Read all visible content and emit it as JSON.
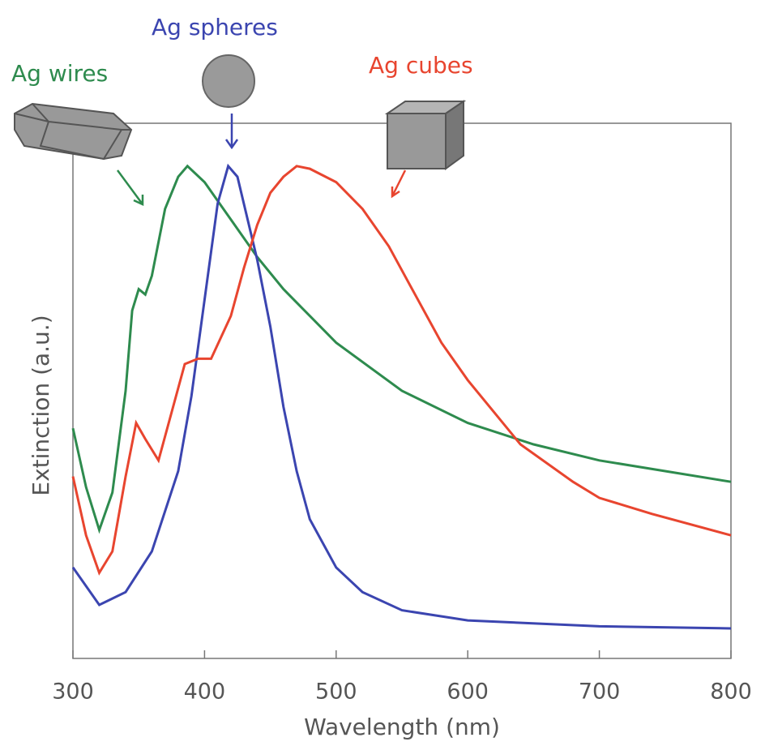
{
  "chart_data": {
    "type": "line",
    "xlabel": "Wavelength (nm)",
    "ylabel": "Extinction (a.u.)",
    "xlim": [
      300,
      800
    ],
    "ylim": [
      0,
      1
    ],
    "xticks": [
      300,
      400,
      500,
      600,
      700,
      800
    ],
    "series": [
      {
        "name": "Ag wires",
        "color": "#2e8b4e",
        "x": [
          300,
          310,
          320,
          330,
          340,
          345,
          350,
          355,
          360,
          370,
          380,
          387,
          400,
          420,
          440,
          460,
          480,
          500,
          550,
          600,
          650,
          700,
          750,
          800
        ],
        "values": [
          0.43,
          0.32,
          0.24,
          0.31,
          0.5,
          0.65,
          0.69,
          0.68,
          0.715,
          0.84,
          0.9,
          0.92,
          0.89,
          0.82,
          0.75,
          0.69,
          0.64,
          0.59,
          0.5,
          0.44,
          0.4,
          0.37,
          0.35,
          0.33
        ]
      },
      {
        "name": "Ag spheres",
        "color": "#3b45b0",
        "x": [
          300,
          320,
          340,
          360,
          380,
          390,
          400,
          410,
          418,
          425,
          440,
          450,
          460,
          470,
          480,
          500,
          520,
          550,
          600,
          700,
          800
        ],
        "values": [
          0.17,
          0.1,
          0.124,
          0.2,
          0.35,
          0.49,
          0.67,
          0.85,
          0.92,
          0.9,
          0.745,
          0.62,
          0.47,
          0.35,
          0.26,
          0.17,
          0.124,
          0.09,
          0.071,
          0.06,
          0.056
        ]
      },
      {
        "name": "Ag cubes",
        "color": "#e8452f",
        "x": [
          300,
          310,
          320,
          330,
          340,
          348,
          355,
          365,
          375,
          385,
          395,
          405,
          420,
          430,
          440,
          450,
          460,
          470,
          480,
          500,
          520,
          540,
          560,
          580,
          600,
          640,
          680,
          700,
          740,
          800
        ],
        "values": [
          0.34,
          0.23,
          0.16,
          0.2,
          0.34,
          0.44,
          0.41,
          0.37,
          0.46,
          0.55,
          0.56,
          0.56,
          0.64,
          0.73,
          0.81,
          0.87,
          0.9,
          0.92,
          0.915,
          0.89,
          0.84,
          0.77,
          0.68,
          0.59,
          0.52,
          0.4,
          0.33,
          0.3,
          0.27,
          0.23
        ]
      }
    ]
  }
}
